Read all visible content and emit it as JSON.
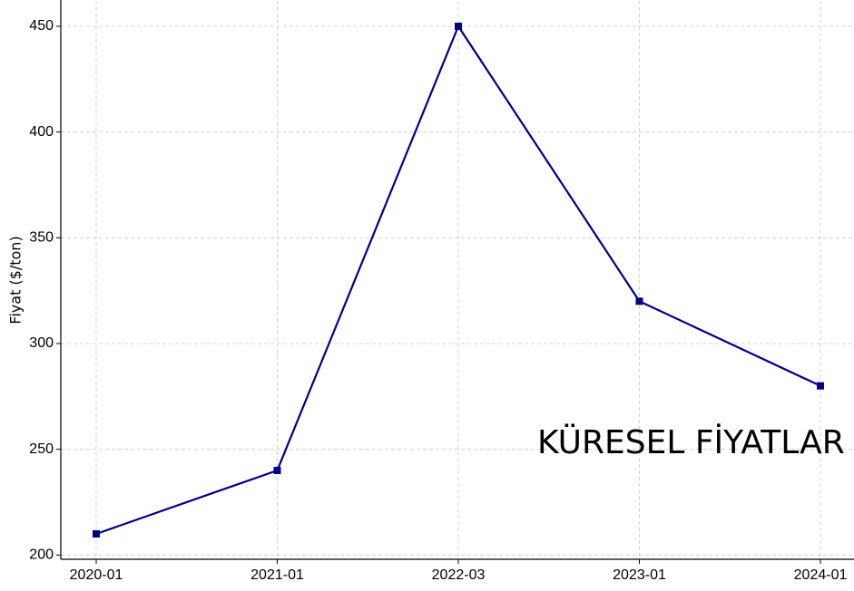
{
  "chart_data": {
    "type": "line",
    "categories": [
      "2020-01",
      "2021-01",
      "2022-03",
      "2023-01",
      "2024-01"
    ],
    "series": [
      {
        "name": "Fiyat",
        "color": "#00008b",
        "values": [
          210,
          240,
          450,
          320,
          280
        ]
      }
    ],
    "y_label": "Fiyat ($/ton)",
    "annotation": "KÜRESEL FİYATLAR",
    "ylim": [
      198,
      462
    ],
    "yticks": [
      200,
      250,
      300,
      350,
      400,
      450
    ],
    "grid": true
  }
}
